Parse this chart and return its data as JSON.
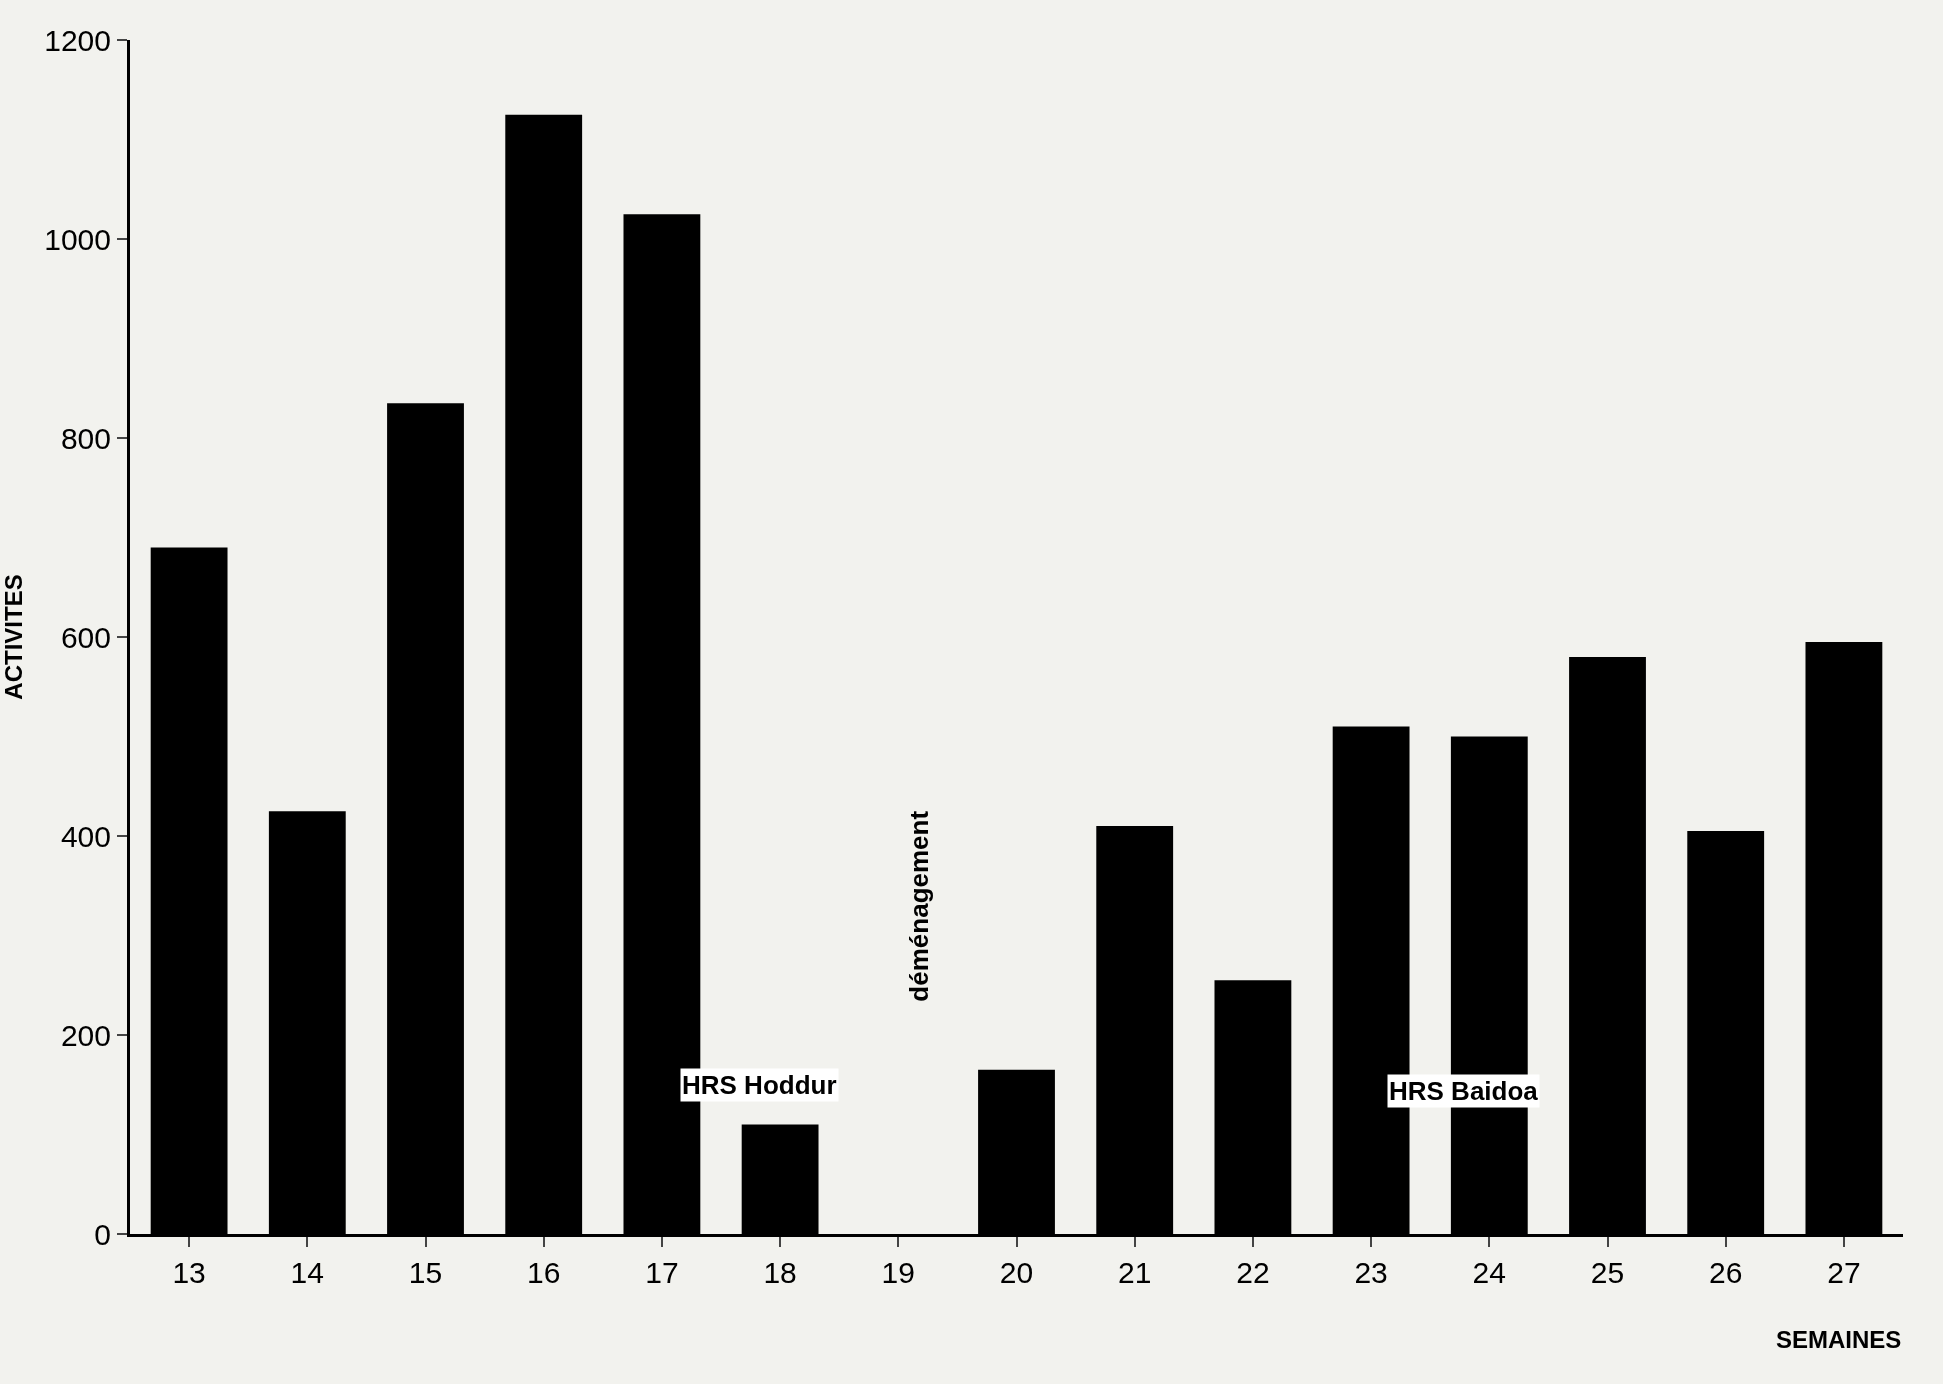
{
  "chart_data": {
    "type": "bar",
    "xlabel": "SEMAINES",
    "ylabel": "ACTIVITES",
    "categories": [
      "13",
      "14",
      "15",
      "16",
      "17",
      "18",
      "19",
      "20",
      "21",
      "22",
      "23",
      "24",
      "25",
      "26",
      "27"
    ],
    "values": [
      690,
      425,
      835,
      1125,
      1025,
      110,
      null,
      165,
      410,
      255,
      510,
      500,
      580,
      405,
      595
    ],
    "color": "#000000",
    "ylim": [
      0,
      1200
    ],
    "yticks": [
      0,
      200,
      400,
      600,
      800,
      1000,
      1200
    ],
    "grid": false,
    "legend": false,
    "annotations": [
      "HRS Hoddur",
      "déménagement",
      "HRS Baidoa"
    ]
  }
}
